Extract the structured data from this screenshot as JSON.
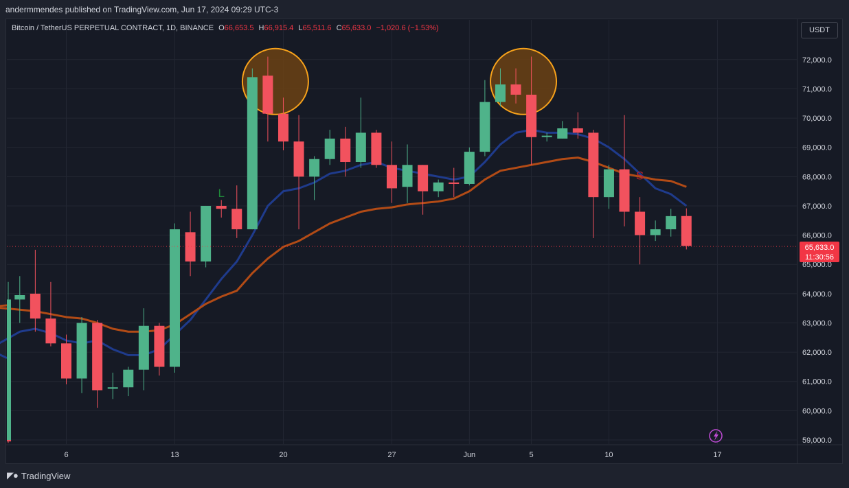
{
  "publisher_line": "andermmendes published on TradingView.com, Jun 17, 2024 09:29 UTC-3",
  "legend": {
    "symbol": "Bitcoin / TetherUS PERPETUAL CONTRACT, 1D, BINANCE",
    "o_label": "O",
    "o_value": "66,653.5",
    "h_label": "H",
    "h_value": "66,915.4",
    "l_label": "L",
    "l_value": "65,511.6",
    "c_label": "C",
    "c_value": "65,633.0",
    "change": "−1,020.6 (−1.53%)"
  },
  "currency_button": "USDT",
  "price_tag": {
    "price": "65,633.0",
    "countdown": "11:30:56"
  },
  "footer_brand": "TradingView",
  "colors": {
    "up": "#4fb38a",
    "down": "#f2525e",
    "ema_fast": "#1f3b8c",
    "ema_slow": "#b24b16",
    "circle_stroke": "#f7a21b",
    "circle_fill": "#6b4214",
    "grid": "#232733",
    "tag": "#f23645"
  },
  "chart_data": {
    "type": "candlestick",
    "title": "Bitcoin / TetherUS PERPETUAL CONTRACT, 1D, BINANCE",
    "xlabel": "",
    "ylabel": "",
    "ylim": [
      58800,
      72750
    ],
    "y_ticks": [
      "59,000.0",
      "60,000.0",
      "61,000.0",
      "62,000.0",
      "63,000.0",
      "64,000.0",
      "65,000.0",
      "66,000.0",
      "67,000.0",
      "68,000.0",
      "69,000.0",
      "70,000.0",
      "71,000.0",
      "72,000.0"
    ],
    "x_ticks": [
      {
        "label": "6",
        "date": "2024-05-06"
      },
      {
        "label": "13",
        "date": "2024-05-13"
      },
      {
        "label": "20",
        "date": "2024-05-20"
      },
      {
        "label": "27",
        "date": "2024-05-27"
      },
      {
        "label": "Jun",
        "date": "2024-06-01"
      },
      {
        "label": "5",
        "date": "2024-06-05"
      },
      {
        "label": "10",
        "date": "2024-06-10"
      },
      {
        "label": "17",
        "date": "2024-06-17"
      }
    ],
    "candles": [
      {
        "date": "2024-04-30",
        "o": 59000,
        "h": 59000,
        "l": 58900,
        "c": 58950
      },
      {
        "date": "2024-05-01",
        "o": 59000,
        "h": 63400,
        "l": 59000,
        "c": 62800
      },
      {
        "date": "2024-05-02",
        "o": 62800,
        "h": 64400,
        "l": 62600,
        "c": 63800
      },
      {
        "date": "2024-05-03",
        "o": 63800,
        "h": 64600,
        "l": 63000,
        "c": 63950
      },
      {
        "date": "2024-05-04",
        "o": 64000,
        "h": 65500,
        "l": 62700,
        "c": 63150
      },
      {
        "date": "2024-05-05",
        "o": 63150,
        "h": 64400,
        "l": 62200,
        "c": 62300
      },
      {
        "date": "2024-05-06",
        "o": 62300,
        "h": 62600,
        "l": 60900,
        "c": 61100
      },
      {
        "date": "2024-05-07",
        "o": 61100,
        "h": 63200,
        "l": 60600,
        "c": 63000
      },
      {
        "date": "2024-05-08",
        "o": 63000,
        "h": 63100,
        "l": 60100,
        "c": 60700
      },
      {
        "date": "2024-05-09",
        "o": 60750,
        "h": 61300,
        "l": 60400,
        "c": 60800
      },
      {
        "date": "2024-05-10",
        "o": 60800,
        "h": 61500,
        "l": 60500,
        "c": 61400
      },
      {
        "date": "2024-05-11",
        "o": 61400,
        "h": 63500,
        "l": 60700,
        "c": 62900
      },
      {
        "date": "2024-05-12",
        "o": 62900,
        "h": 63000,
        "l": 61200,
        "c": 61500
      },
      {
        "date": "2024-05-13",
        "o": 61500,
        "h": 66400,
        "l": 61300,
        "c": 66200
      },
      {
        "date": "2024-05-14",
        "o": 66100,
        "h": 66800,
        "l": 64600,
        "c": 65100
      },
      {
        "date": "2024-05-15",
        "o": 65100,
        "h": 67000,
        "l": 64900,
        "c": 67000
      },
      {
        "date": "2024-05-16",
        "o": 67000,
        "h": 67200,
        "l": 66600,
        "c": 66900
      },
      {
        "date": "2024-05-17",
        "o": 66900,
        "h": 67700,
        "l": 65900,
        "c": 66200
      },
      {
        "date": "2024-05-18",
        "o": 66200,
        "h": 71700,
        "l": 66200,
        "c": 71400
      },
      {
        "date": "2024-05-19",
        "o": 71450,
        "h": 72100,
        "l": 69200,
        "c": 70150
      },
      {
        "date": "2024-05-20",
        "o": 70150,
        "h": 70700,
        "l": 68900,
        "c": 69200
      },
      {
        "date": "2024-05-21",
        "o": 69200,
        "h": 70100,
        "l": 66200,
        "c": 68000
      },
      {
        "date": "2024-05-22",
        "o": 68000,
        "h": 68700,
        "l": 67200,
        "c": 68600
      },
      {
        "date": "2024-05-23",
        "o": 68600,
        "h": 69600,
        "l": 68400,
        "c": 69300
      },
      {
        "date": "2024-05-24",
        "o": 69300,
        "h": 69700,
        "l": 68000,
        "c": 68500
      },
      {
        "date": "2024-05-25",
        "o": 68500,
        "h": 70700,
        "l": 68300,
        "c": 69500
      },
      {
        "date": "2024-05-26",
        "o": 69500,
        "h": 69600,
        "l": 68300,
        "c": 68400
      },
      {
        "date": "2024-05-27",
        "o": 68400,
        "h": 69200,
        "l": 67100,
        "c": 67600
      },
      {
        "date": "2024-05-28",
        "o": 67650,
        "h": 69100,
        "l": 67100,
        "c": 68400
      },
      {
        "date": "2024-05-29",
        "o": 68400,
        "h": 68400,
        "l": 66700,
        "c": 67500
      },
      {
        "date": "2024-05-30",
        "o": 67500,
        "h": 67900,
        "l": 67300,
        "c": 67800
      },
      {
        "date": "2024-05-31",
        "o": 67800,
        "h": 68300,
        "l": 67300,
        "c": 67750
      },
      {
        "date": "2024-06-01",
        "o": 67750,
        "h": 69000,
        "l": 67700,
        "c": 68850
      },
      {
        "date": "2024-06-02",
        "o": 68850,
        "h": 71300,
        "l": 68700,
        "c": 70550
      },
      {
        "date": "2024-06-03",
        "o": 70550,
        "h": 71700,
        "l": 70400,
        "c": 71150
      },
      {
        "date": "2024-06-04",
        "o": 71150,
        "h": 71700,
        "l": 70500,
        "c": 70800
      },
      {
        "date": "2024-06-05",
        "o": 70800,
        "h": 72100,
        "l": 68400,
        "c": 69350
      },
      {
        "date": "2024-06-06",
        "o": 69350,
        "h": 69500,
        "l": 69200,
        "c": 69400
      },
      {
        "date": "2024-06-07",
        "o": 69300,
        "h": 69900,
        "l": 69300,
        "c": 69650
      },
      {
        "date": "2024-06-08",
        "o": 69650,
        "h": 70200,
        "l": 69300,
        "c": 69500
      },
      {
        "date": "2024-06-09",
        "o": 69500,
        "h": 69600,
        "l": 65900,
        "c": 67300
      },
      {
        "date": "2024-06-10",
        "o": 67300,
        "h": 68400,
        "l": 66900,
        "c": 68250
      },
      {
        "date": "2024-06-11",
        "o": 68250,
        "h": 70100,
        "l": 66300,
        "c": 66800
      },
      {
        "date": "2024-06-12",
        "o": 66800,
        "h": 67300,
        "l": 65000,
        "c": 66000
      },
      {
        "date": "2024-06-13",
        "o": 66000,
        "h": 66500,
        "l": 65800,
        "c": 66200
      },
      {
        "date": "2024-06-14",
        "o": 66200,
        "h": 66900,
        "l": 65950,
        "c": 66650
      },
      {
        "date": "2024-06-15",
        "o": 66653.5,
        "h": 66915.4,
        "l": 65511.6,
        "c": 65633.0
      }
    ],
    "series": [
      {
        "values": [
          61800,
          62100,
          62400,
          62700,
          62800,
          62650,
          62400,
          62300,
          62400,
          62100,
          61900,
          61900,
          62100,
          62600,
          63100,
          63800,
          64500,
          65100,
          66000,
          67000,
          67500,
          67600,
          67800,
          68100,
          68200,
          68400,
          68500,
          68300,
          68200,
          68100,
          68000,
          67900,
          68000,
          68500,
          69100,
          69500,
          69600,
          69500,
          69500,
          69450,
          69300,
          69000,
          68600,
          68100,
          67600,
          67400,
          67000
        ]
      },
      {
        "values": [
          63600,
          63550,
          63500,
          63450,
          63400,
          63300,
          63200,
          63150,
          63000,
          62800,
          62700,
          62700,
          62750,
          62950,
          63300,
          63650,
          63900,
          64100,
          64700,
          65200,
          65600,
          65800,
          66100,
          66400,
          66600,
          66800,
          66900,
          66950,
          67050,
          67100,
          67150,
          67250,
          67500,
          67900,
          68200,
          68300,
          68400,
          68500,
          68600,
          68650,
          68500,
          68300,
          68100,
          68000,
          67900,
          67850,
          67650
        ]
      }
    ],
    "annotations": [
      {
        "type": "circle",
        "date": "2024-05-19",
        "price": 71250
      },
      {
        "type": "circle",
        "date": "2024-06-04",
        "price": 71250
      },
      {
        "type": "label",
        "text": "L",
        "date": "2024-05-16",
        "price": 67300
      },
      {
        "type": "label",
        "text": "S",
        "date": "2024-06-12",
        "price": 67900
      }
    ]
  }
}
